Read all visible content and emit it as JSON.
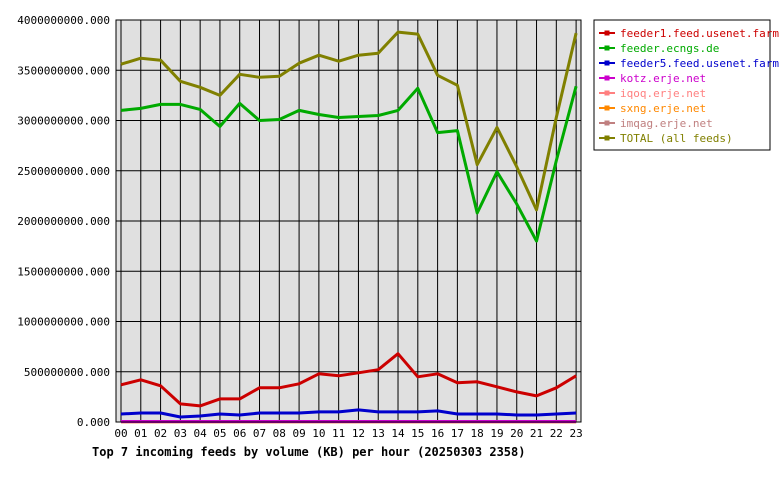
{
  "chart_data": {
    "type": "line",
    "title": "Top 7 incoming feeds by volume (KB) per hour (20250303 2358)",
    "categories": [
      "00",
      "01",
      "02",
      "03",
      "04",
      "05",
      "06",
      "07",
      "08",
      "09",
      "10",
      "11",
      "12",
      "13",
      "14",
      "15",
      "16",
      "17",
      "18",
      "19",
      "20",
      "21",
      "22",
      "23"
    ],
    "ylim": [
      0,
      4000000000
    ],
    "y_ticks": [
      0,
      500000000,
      1000000000,
      1500000000,
      2000000000,
      2500000000,
      3000000000,
      3500000000,
      4000000000
    ],
    "y_tick_labels": [
      "0.000",
      "500000000.000",
      "1000000000.000",
      "1500000000.000",
      "2000000000.000",
      "2500000000.000",
      "3000000000.000",
      "3500000000.000",
      "4000000000.000"
    ],
    "grid": true,
    "legend_position": "right",
    "series": [
      {
        "name": "feeder1.feed.usenet.farm",
        "color": "#cc0000",
        "values": [
          370000000,
          420000000,
          360000000,
          180000000,
          160000000,
          230000000,
          230000000,
          340000000,
          340000000,
          380000000,
          480000000,
          460000000,
          490000000,
          520000000,
          680000000,
          450000000,
          480000000,
          390000000,
          400000000,
          350000000,
          300000000,
          260000000,
          340000000,
          460000000
        ]
      },
      {
        "name": "feeder.ecngs.de",
        "color": "#00aa00",
        "values": [
          3100000000,
          3120000000,
          3160000000,
          3160000000,
          3110000000,
          2940000000,
          3170000000,
          3000000000,
          3010000000,
          3100000000,
          3060000000,
          3030000000,
          3040000000,
          3050000000,
          3100000000,
          3320000000,
          2880000000,
          2900000000,
          2080000000,
          2490000000,
          2170000000,
          1800000000,
          2600000000,
          3340000000
        ]
      },
      {
        "name": "feeder5.feed.usenet.farm",
        "color": "#0000cc",
        "values": [
          80000000,
          90000000,
          90000000,
          50000000,
          60000000,
          80000000,
          70000000,
          90000000,
          90000000,
          90000000,
          100000000,
          100000000,
          120000000,
          100000000,
          100000000,
          100000000,
          110000000,
          80000000,
          80000000,
          80000000,
          70000000,
          70000000,
          80000000,
          90000000
        ]
      },
      {
        "name": "kotz.erje.net",
        "color": "#cc00cc",
        "values": [
          5000000,
          5000000,
          5000000,
          5000000,
          5000000,
          5000000,
          5000000,
          5000000,
          5000000,
          5000000,
          5000000,
          5000000,
          5000000,
          5000000,
          5000000,
          5000000,
          5000000,
          5000000,
          5000000,
          5000000,
          5000000,
          5000000,
          5000000,
          5000000
        ]
      },
      {
        "name": "iqoq.erje.net",
        "color": "#ff8080",
        "values": [
          3000000,
          3000000,
          3000000,
          3000000,
          3000000,
          3000000,
          3000000,
          3000000,
          3000000,
          3000000,
          3000000,
          3000000,
          3000000,
          3000000,
          3000000,
          3000000,
          3000000,
          3000000,
          3000000,
          3000000,
          3000000,
          3000000,
          3000000,
          3000000
        ]
      },
      {
        "name": "sxng.erje.net",
        "color": "#ff8800",
        "values": [
          2000000,
          2000000,
          2000000,
          2000000,
          2000000,
          2000000,
          2000000,
          2000000,
          2000000,
          2000000,
          2000000,
          2000000,
          2000000,
          2000000,
          2000000,
          2000000,
          2000000,
          2000000,
          2000000,
          2000000,
          2000000,
          2000000,
          2000000,
          2000000
        ]
      },
      {
        "name": "imqag.erje.net",
        "color": "#c08080",
        "values": [
          1000000,
          1000000,
          1000000,
          1000000,
          1000000,
          1000000,
          1000000,
          1000000,
          1000000,
          1000000,
          1000000,
          1000000,
          1000000,
          1000000,
          1000000,
          1000000,
          1000000,
          1000000,
          1000000,
          1000000,
          1000000,
          1000000,
          1000000,
          1000000
        ]
      },
      {
        "name": "TOTAL (all feeds)",
        "color": "#808000",
        "values": [
          3560000000,
          3620000000,
          3600000000,
          3390000000,
          3330000000,
          3250000000,
          3460000000,
          3430000000,
          3440000000,
          3570000000,
          3650000000,
          3590000000,
          3650000000,
          3670000000,
          3880000000,
          3860000000,
          3450000000,
          3350000000,
          2560000000,
          2930000000,
          2540000000,
          2110000000,
          3030000000,
          3870000000
        ]
      }
    ]
  }
}
